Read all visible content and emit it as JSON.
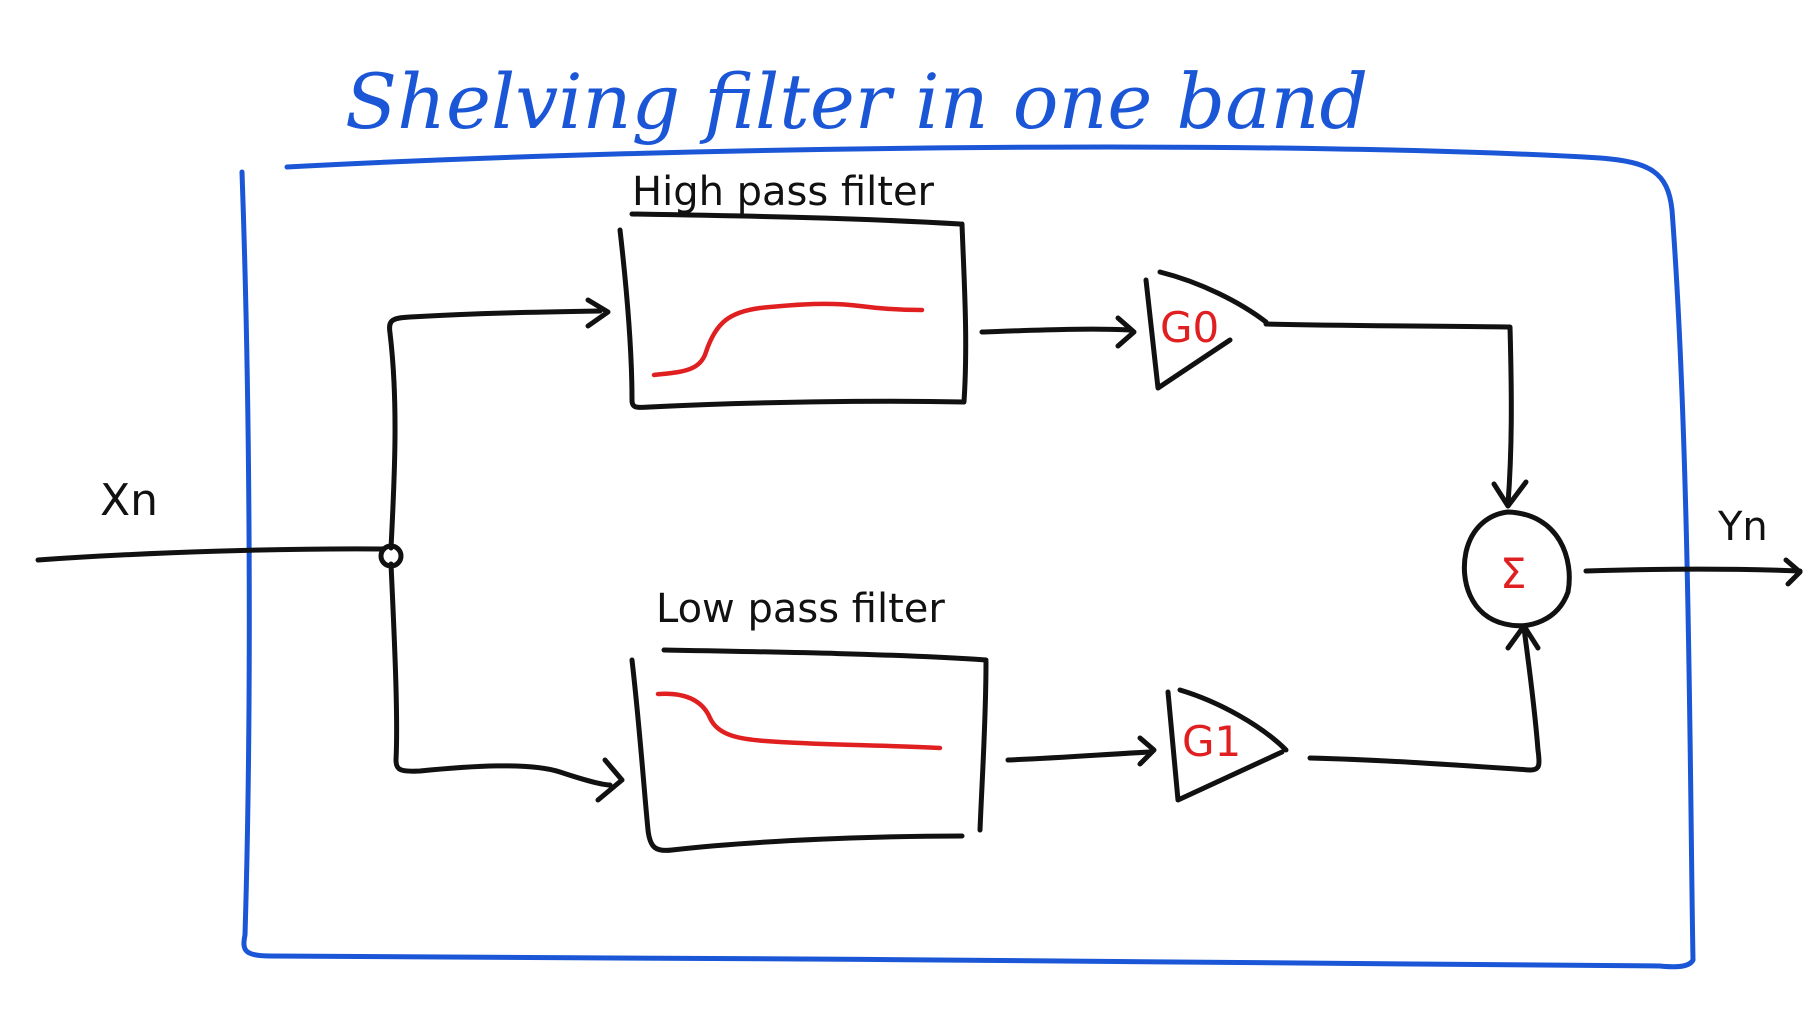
{
  "title": "Shelving filter in one band",
  "input_label": "Xn",
  "output_label": "Yn",
  "blocks": {
    "high_pass": {
      "label": "High pass filter"
    },
    "low_pass": {
      "label": "Low pass filter"
    }
  },
  "gains": {
    "g0": "G0",
    "g1": "G1"
  },
  "summer_symbol": "Σ",
  "colors": {
    "outline": "#1a56d6",
    "wiring": "#111111",
    "response_curves": "#e02020",
    "gain_and_sum_labels": "#e02020"
  }
}
